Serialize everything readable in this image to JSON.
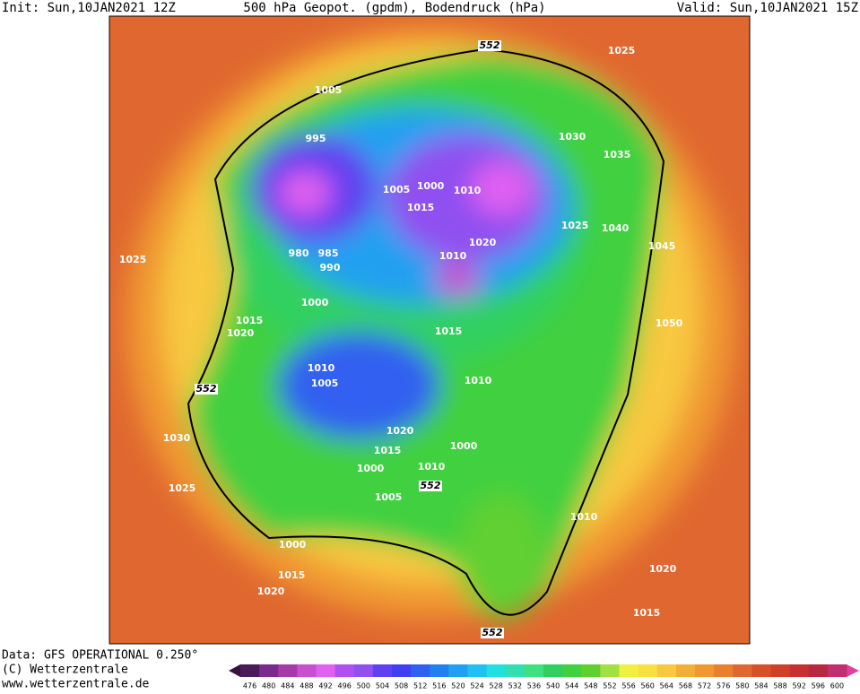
{
  "header": {
    "init": "Init: Sun,10JAN2021 12Z",
    "title": "500 hPa Geopot. (gpdm), Bodendruck (hPa)",
    "valid": "Valid: Sun,10JAN2021 15Z"
  },
  "footer": {
    "data": "Data: GFS OPERATIONAL 0.250°",
    "copyright": "(C) Wetterzentrale",
    "url": "www.wetterzentrale.de"
  },
  "colorbar": {
    "labels": [
      476,
      480,
      484,
      488,
      492,
      496,
      500,
      504,
      508,
      512,
      516,
      520,
      524,
      528,
      532,
      536,
      540,
      544,
      548,
      552,
      556,
      560,
      564,
      568,
      572,
      576,
      580,
      584,
      588,
      592,
      596,
      600
    ],
    "colors": [
      "#4b1a5a",
      "#7a2a8a",
      "#a63aa6",
      "#c84fd0",
      "#e060f0",
      "#b050f0",
      "#9050f0",
      "#6040f0",
      "#4040f0",
      "#3060f0",
      "#2080f0",
      "#20a0f0",
      "#20c0f0",
      "#20e0e0",
      "#30e0b0",
      "#40e080",
      "#30d060",
      "#40d040",
      "#60d030",
      "#a0e040",
      "#f0f040",
      "#f8e040",
      "#f8c840",
      "#f0b038",
      "#f09830",
      "#e88030",
      "#e06830",
      "#d85028",
      "#d04028",
      "#c83030",
      "#b82840",
      "#c03070"
    ]
  },
  "map": {
    "pressure_labels": [
      "1025",
      "1005",
      "995",
      "1030",
      "1035",
      "1005",
      "1000",
      "1010",
      "1015",
      "1025",
      "1040",
      "1045",
      "1020",
      "980",
      "985",
      "990",
      "1010",
      "1025",
      "1000",
      "1015",
      "1020",
      "1050",
      "1015",
      "1010",
      "1005",
      "1010",
      "1020",
      "1030",
      "1000",
      "1015",
      "1000",
      "1010",
      "1005",
      "1025",
      "1010",
      "1000",
      "1015",
      "1020",
      "1020",
      "1015"
    ],
    "height_labels": [
      "552",
      "552",
      "552",
      "552"
    ]
  }
}
